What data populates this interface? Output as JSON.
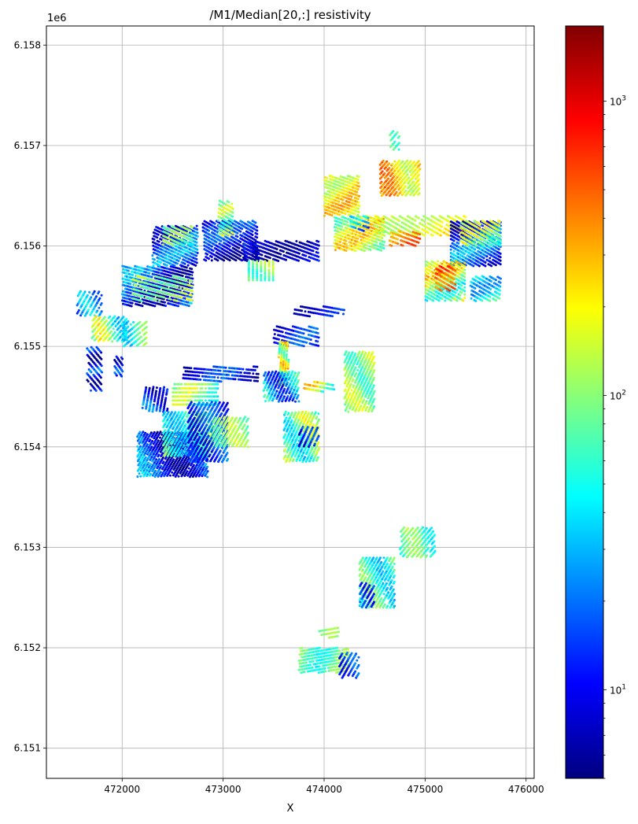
{
  "chart_data": {
    "type": "scatter",
    "title": "/M1/Median[20,:] resistivity",
    "xlabel": "X",
    "ylabel": "",
    "y_offset_label": "1e6",
    "xlim": [
      471250,
      476080
    ],
    "ylim": [
      6150700,
      6158190
    ],
    "x_ticks": [
      472000,
      473000,
      474000,
      475000,
      476000
    ],
    "x_tick_labels": [
      "472000",
      "473000",
      "474000",
      "475000",
      "476000"
    ],
    "y_ticks": [
      6151000,
      6152000,
      6153000,
      6154000,
      6155000,
      6156000,
      6157000,
      6158000
    ],
    "y_tick_labels": [
      "6.151",
      "6.152",
      "6.153",
      "6.154",
      "6.155",
      "6.156",
      "6.157",
      "6.158"
    ],
    "grid": true,
    "colorbar": {
      "colormap": "jet",
      "scale": "log",
      "range": [
        5,
        1800
      ],
      "major_ticks": [
        10,
        100,
        1000
      ],
      "major_tick_labels": [
        {
          "base": "10",
          "exp": "1"
        },
        {
          "base": "10",
          "exp": "2"
        },
        {
          "base": "10",
          "exp": "3"
        }
      ],
      "colors": [
        "#000080",
        "#0000ff",
        "#0080ff",
        "#00ffff",
        "#80ff80",
        "#ffff00",
        "#ff8000",
        "#ff0000",
        "#800000"
      ]
    },
    "clusters": [
      {
        "x": [
          471920,
          472010
        ],
        "y": [
          6154700,
          6154900
        ],
        "angle": -55,
        "step": 35,
        "value": 12,
        "var": 0.5
      },
      {
        "x": [
          471650,
          471800
        ],
        "y": [
          6154550,
          6155000
        ],
        "angle": -50,
        "step": 40,
        "value": 10,
        "var": 0.6
      },
      {
        "x": [
          471550,
          471800
        ],
        "y": [
          6155300,
          6155550
        ],
        "angle": 60,
        "step": 40,
        "value": 25,
        "var": 0.5
      },
      {
        "x": [
          471700,
          472050
        ],
        "y": [
          6155050,
          6155300
        ],
        "angle": 50,
        "step": 35,
        "value": 80,
        "var": 0.7
      },
      {
        "x": [
          472000,
          472700
        ],
        "y": [
          6155400,
          6155800
        ],
        "angle": -15,
        "step": 30,
        "value": 14,
        "var": 0.7
      },
      {
        "x": [
          472100,
          472700
        ],
        "y": [
          6155450,
          6155700
        ],
        "angle": -15,
        "step": 45,
        "value": 120,
        "var": 0.4
      },
      {
        "x": [
          472000,
          472250
        ],
        "y": [
          6155000,
          6155250
        ],
        "angle": 40,
        "step": 40,
        "value": 60,
        "var": 0.5
      },
      {
        "x": [
          472300,
          472750
        ],
        "y": [
          6155800,
          6156200
        ],
        "angle": -25,
        "step": 30,
        "value": 15,
        "var": 0.6
      },
      {
        "x": [
          472400,
          472700
        ],
        "y": [
          6156000,
          6156200
        ],
        "angle": -25,
        "step": 40,
        "value": 80,
        "var": 0.4
      },
      {
        "x": [
          472800,
          473350
        ],
        "y": [
          6155850,
          6156250
        ],
        "angle": -30,
        "step": 30,
        "value": 10,
        "var": 0.5
      },
      {
        "x": [
          472950,
          473100
        ],
        "y": [
          6156100,
          6156450
        ],
        "angle": -30,
        "step": 35,
        "value": 100,
        "var": 0.4
      },
      {
        "x": [
          473200,
          473950
        ],
        "y": [
          6155850,
          6156050
        ],
        "angle": -20,
        "step": 35,
        "value": 10,
        "var": 0.4
      },
      {
        "x": [
          473250,
          473500
        ],
        "y": [
          6155650,
          6155850
        ],
        "angle": 90,
        "step": 40,
        "value": 90,
        "var": 0.4
      },
      {
        "x": [
          474000,
          474350
        ],
        "y": [
          6156300,
          6156700
        ],
        "angle": -20,
        "step": 30,
        "value": 200,
        "var": 0.4
      },
      {
        "x": [
          474100,
          474600
        ],
        "y": [
          6155950,
          6156300
        ],
        "angle": -20,
        "step": 30,
        "value": 130,
        "var": 0.6
      },
      {
        "x": [
          474250,
          474450
        ],
        "y": [
          6156150,
          6156300
        ],
        "angle": -20,
        "step": 45,
        "value": 25,
        "var": 0.5
      },
      {
        "x": [
          474550,
          474950
        ],
        "y": [
          6156500,
          6156850
        ],
        "angle": 50,
        "step": 30,
        "value": 250,
        "var": 0.5
      },
      {
        "x": [
          474650,
          474750
        ],
        "y": [
          6156950,
          6157150
        ],
        "angle": 50,
        "step": 40,
        "value": 90,
        "var": 0.4
      },
      {
        "x": [
          474500,
          475400
        ],
        "y": [
          6156100,
          6156300
        ],
        "angle": -30,
        "step": 40,
        "value": 200,
        "var": 0.4
      },
      {
        "x": [
          474650,
          474950
        ],
        "y": [
          6156000,
          6156150
        ],
        "angle": -20,
        "step": 40,
        "value": 400,
        "var": 0.3
      },
      {
        "x": [
          475250,
          475750
        ],
        "y": [
          6155800,
          6156250
        ],
        "angle": -30,
        "step": 30,
        "value": 15,
        "var": 0.6
      },
      {
        "x": [
          475350,
          475750
        ],
        "y": [
          6156000,
          6156250
        ],
        "angle": -30,
        "step": 40,
        "value": 110,
        "var": 0.5
      },
      {
        "x": [
          475000,
          475400
        ],
        "y": [
          6155450,
          6155850
        ],
        "angle": -30,
        "step": 30,
        "value": 120,
        "var": 0.7
      },
      {
        "x": [
          475100,
          475300
        ],
        "y": [
          6155550,
          6155800
        ],
        "angle": -30,
        "step": 40,
        "value": 500,
        "var": 0.3
      },
      {
        "x": [
          475450,
          475750
        ],
        "y": [
          6155450,
          6155700
        ],
        "angle": -30,
        "step": 35,
        "value": 40,
        "var": 0.5
      },
      {
        "x": [
          473700,
          474200
        ],
        "y": [
          6155300,
          6155400
        ],
        "angle": -10,
        "step": 40,
        "value": 10,
        "var": 0.3
      },
      {
        "x": [
          473500,
          473950
        ],
        "y": [
          6155000,
          6155200
        ],
        "angle": -15,
        "step": 40,
        "value": 12,
        "var": 0.4
      },
      {
        "x": [
          473550,
          473650
        ],
        "y": [
          6154600,
          6155050
        ],
        "angle": 85,
        "step": 25,
        "value": 140,
        "var": 0.6
      },
      {
        "x": [
          473800,
          474100
        ],
        "y": [
          6154550,
          6154650
        ],
        "angle": -10,
        "step": 40,
        "value": 120,
        "var": 0.7
      },
      {
        "x": [
          474200,
          474500
        ],
        "y": [
          6154350,
          6154950
        ],
        "angle": 65,
        "step": 30,
        "value": 100,
        "var": 0.4
      },
      {
        "x": [
          473400,
          473750
        ],
        "y": [
          6154450,
          6154750
        ],
        "angle": 65,
        "step": 30,
        "value": 30,
        "var": 0.7
      },
      {
        "x": [
          473600,
          473950
        ],
        "y": [
          6153850,
          6154350
        ],
        "angle": 65,
        "step": 30,
        "value": 80,
        "var": 0.6
      },
      {
        "x": [
          473750,
          473950
        ],
        "y": [
          6154000,
          6154200
        ],
        "angle": 65,
        "step": 45,
        "value": 12,
        "var": 0.4
      },
      {
        "x": [
          472600,
          473350
        ],
        "y": [
          6154650,
          6154800
        ],
        "angle": -5,
        "step": 35,
        "value": 10,
        "var": 0.5
      },
      {
        "x": [
          472500,
          472950
        ],
        "y": [
          6154400,
          6154650
        ],
        "angle": 0,
        "step": 40,
        "value": 90,
        "var": 0.5
      },
      {
        "x": [
          472200,
          472450
        ],
        "y": [
          6154350,
          6154600
        ],
        "angle": 80,
        "step": 35,
        "value": 14,
        "var": 0.5
      },
      {
        "x": [
          472150,
          472850
        ],
        "y": [
          6153700,
          6154150
        ],
        "angle": 60,
        "step": 25,
        "value": 14,
        "var": 0.7
      },
      {
        "x": [
          472400,
          472900
        ],
        "y": [
          6153900,
          6154350
        ],
        "angle": 60,
        "step": 30,
        "value": 60,
        "var": 0.5
      },
      {
        "x": [
          472650,
          473050
        ],
        "y": [
          6153850,
          6154450
        ],
        "angle": 60,
        "step": 35,
        "value": 14,
        "var": 0.4
      },
      {
        "x": [
          472900,
          473250
        ],
        "y": [
          6154000,
          6154300
        ],
        "angle": 60,
        "step": 35,
        "value": 100,
        "var": 0.3
      },
      {
        "x": [
          474750,
          475100
        ],
        "y": [
          6152900,
          6153200
        ],
        "angle": 50,
        "step": 35,
        "value": 70,
        "var": 0.4
      },
      {
        "x": [
          474350,
          474700
        ],
        "y": [
          6152400,
          6152900
        ],
        "angle": 60,
        "step": 30,
        "value": 60,
        "var": 0.5
      },
      {
        "x": [
          474350,
          474500
        ],
        "y": [
          6152400,
          6152650
        ],
        "angle": 60,
        "step": 40,
        "value": 15,
        "var": 0.3
      },
      {
        "x": [
          473750,
          474250
        ],
        "y": [
          6151750,
          6152000
        ],
        "angle": 10,
        "step": 30,
        "value": 80,
        "var": 0.4
      },
      {
        "x": [
          474150,
          474350
        ],
        "y": [
          6151700,
          6151950
        ],
        "angle": 60,
        "step": 40,
        "value": 15,
        "var": 0.3
      },
      {
        "x": [
          473950,
          474150
        ],
        "y": [
          6152100,
          6152200
        ],
        "angle": 10,
        "step": 40,
        "value": 100,
        "var": 0.2
      }
    ]
  }
}
